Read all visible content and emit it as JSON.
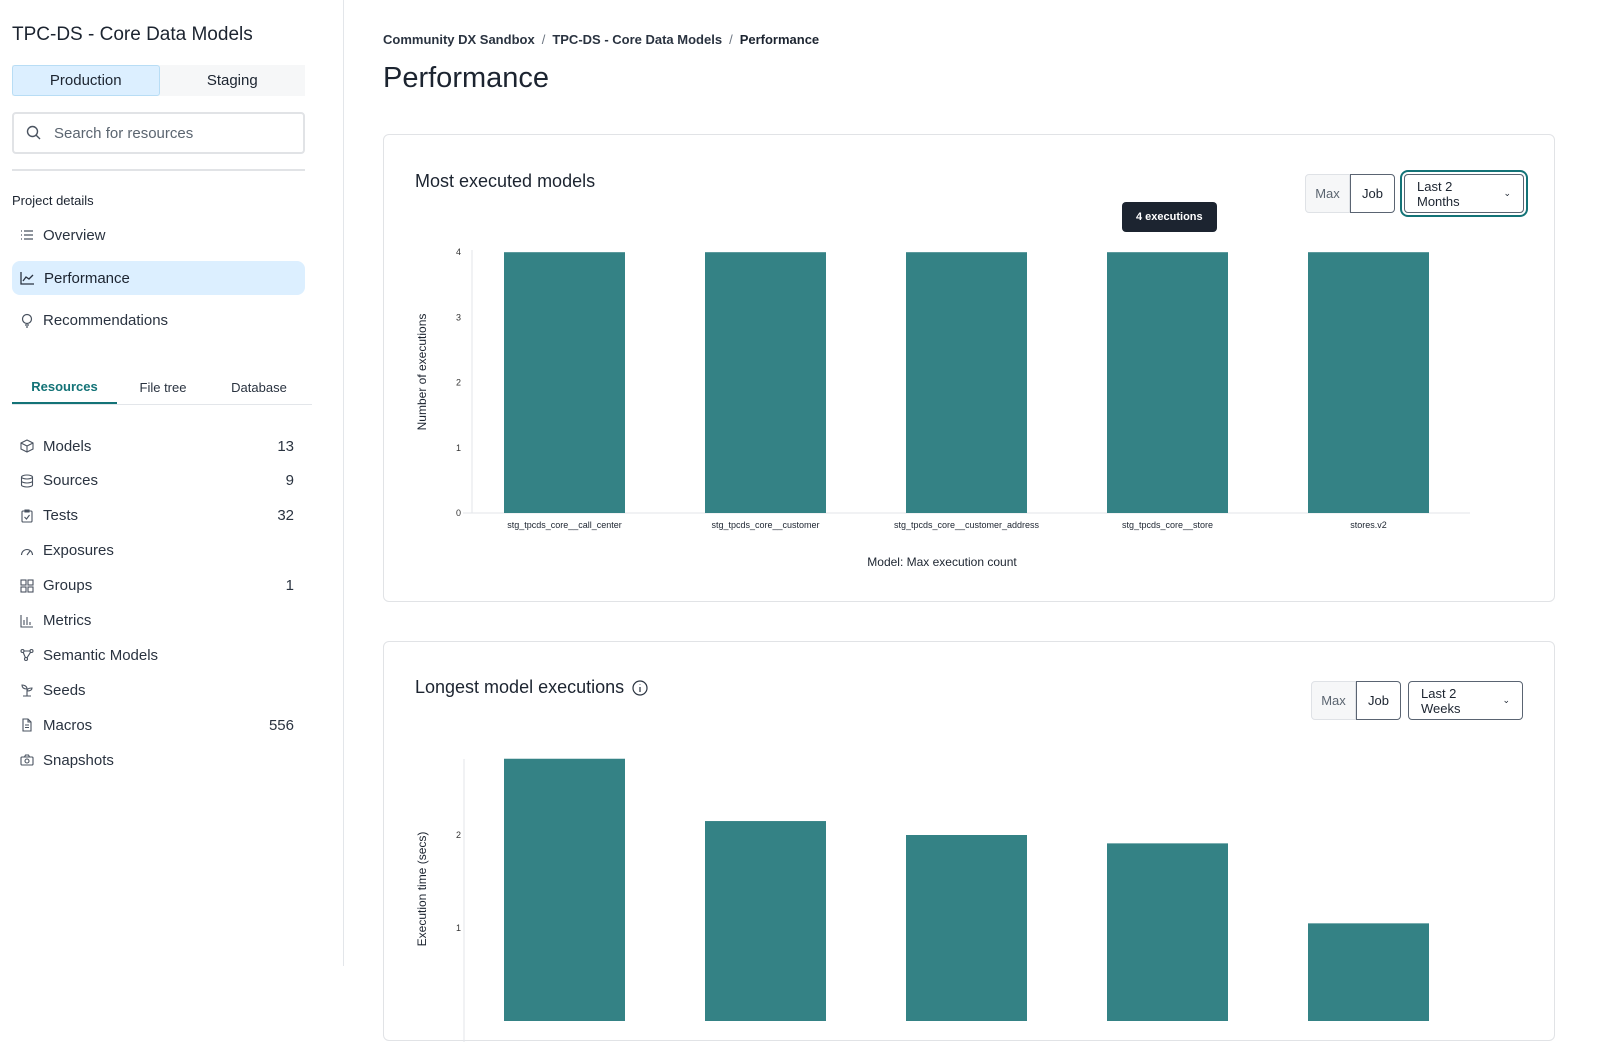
{
  "sidebar": {
    "project_title": "TPC-DS - Core Data Models",
    "environments": [
      "Production",
      "Staging"
    ],
    "search_placeholder": "Search for resources",
    "section_title": "Project details",
    "nav": [
      {
        "label": "Overview",
        "icon": "list-icon"
      },
      {
        "label": "Performance",
        "icon": "chart-line-icon"
      },
      {
        "label": "Recommendations",
        "icon": "lightbulb-icon"
      }
    ],
    "tabs": [
      "Resources",
      "File tree",
      "Database"
    ],
    "resources": [
      {
        "label": "Models",
        "count": "13",
        "icon": "cube-icon"
      },
      {
        "label": "Sources",
        "count": "9",
        "icon": "database-icon"
      },
      {
        "label": "Tests",
        "count": "32",
        "icon": "clipboard-icon"
      },
      {
        "label": "Exposures",
        "count": "",
        "icon": "gauge-icon"
      },
      {
        "label": "Groups",
        "count": "1",
        "icon": "grid-icon"
      },
      {
        "label": "Metrics",
        "count": "",
        "icon": "bar-chart-icon"
      },
      {
        "label": "Semantic Models",
        "count": "",
        "icon": "graph-icon"
      },
      {
        "label": "Seeds",
        "count": "",
        "icon": "sprout-icon"
      },
      {
        "label": "Macros",
        "count": "556",
        "icon": "file-icon"
      },
      {
        "label": "Snapshots",
        "count": "",
        "icon": "camera-icon"
      }
    ]
  },
  "breadcrumb": [
    "Community DX Sandbox",
    "TPC-DS - Core Data Models",
    "Performance"
  ],
  "page_title": "Performance",
  "accent": "#137377",
  "bar_color": "#348285",
  "cards": [
    {
      "title": "Most executed models",
      "toggle": [
        "Max",
        "Job"
      ],
      "range": "Last 2 Months",
      "tooltip": "4 executions"
    },
    {
      "title": "Longest model executions",
      "toggle": [
        "Max",
        "Job"
      ],
      "range": "Last 2 Weeks"
    }
  ],
  "chart_data": [
    {
      "type": "bar",
      "title": "",
      "xlabel": "Model: Max execution count",
      "ylabel": "Number of executions",
      "ylim": [
        0,
        4
      ],
      "yticks": [
        "0",
        "1",
        "2",
        "3",
        "4"
      ],
      "categories": [
        "stg_tpcds_core__call_center",
        "stg_tpcds_core__customer",
        "stg_tpcds_core__customer_address",
        "stg_tpcds_core__store",
        "stores.v2"
      ],
      "values": [
        4,
        4,
        4,
        4,
        4
      ]
    },
    {
      "type": "bar",
      "title": "",
      "ylabel": "Execution time (secs)",
      "yticks": [
        "1",
        "2"
      ],
      "values": [
        2.82,
        2.15,
        2.0,
        1.91,
        1.05
      ]
    }
  ]
}
